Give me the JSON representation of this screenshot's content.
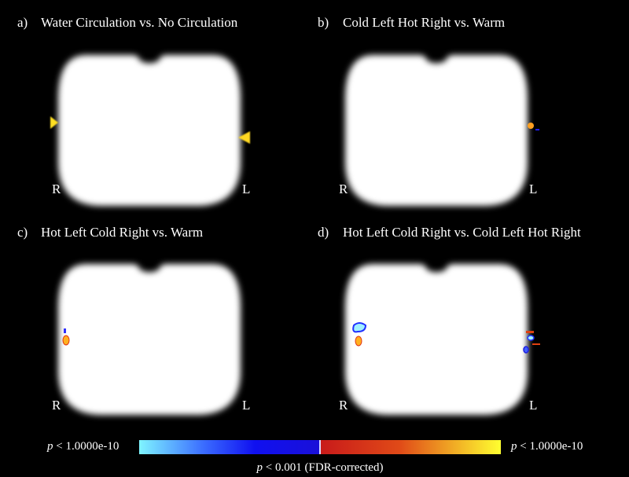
{
  "panels": [
    {
      "label": "a)",
      "title": "Water Circulation vs. No Circulation",
      "right_side": "R",
      "left_side": "L"
    },
    {
      "label": "b)",
      "title": "Cold Left Hot Right vs. Warm",
      "right_side": "R",
      "left_side": "L"
    },
    {
      "label": "c)",
      "title": "Hot Left Cold Right vs. Warm",
      "right_side": "R",
      "left_side": "L"
    },
    {
      "label": "d)",
      "title": "Hot Left Cold Right vs. Cold Left Hot Right",
      "right_side": "R",
      "left_side": "L"
    }
  ],
  "colorbar": {
    "min_label": {
      "italic": "p",
      "text": "< 1.0000e-10"
    },
    "max_label": {
      "italic": "p",
      "text": "< 1.0000e-10"
    },
    "threshold": {
      "italic": "p",
      "text": "< 0.001 (FDR-corrected)"
    }
  }
}
